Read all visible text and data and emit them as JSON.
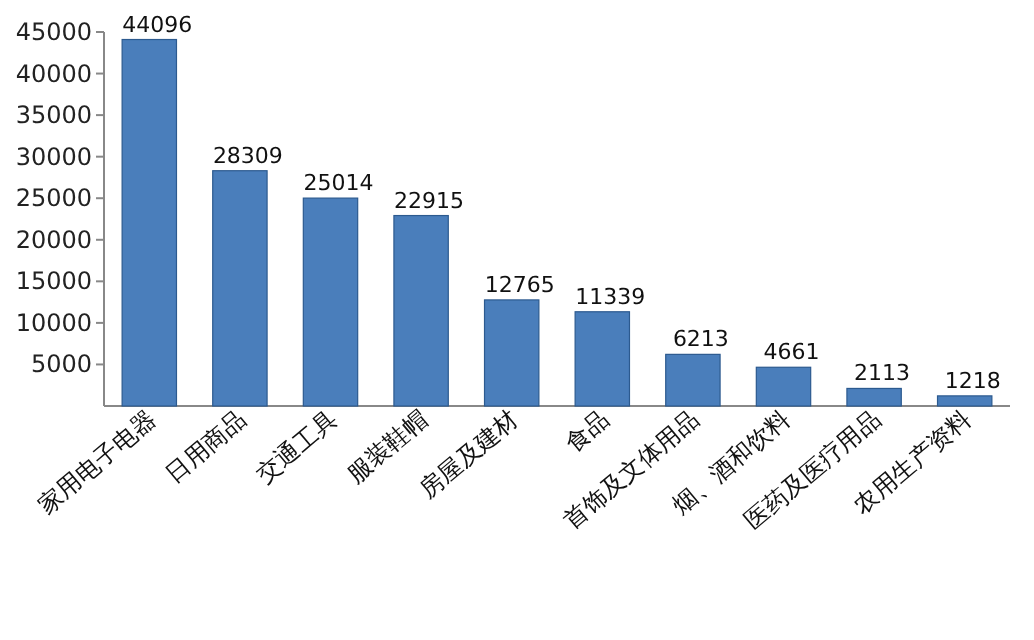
{
  "chart_data": {
    "type": "bar",
    "categories": [
      "家用电子电器",
      "日用商品",
      "交通工具",
      "服装鞋帽",
      "房屋及建材",
      "食品",
      "首饰及文体用品",
      "烟、酒和饮料",
      "医药及医疗用品",
      "农用生产资料"
    ],
    "values": [
      44096,
      28309,
      25014,
      22915,
      12765,
      11339,
      6213,
      4661,
      2113,
      1218
    ],
    "color": "#4a7ebb",
    "ylim": [
      0,
      45000
    ],
    "yticks": [
      5000,
      10000,
      15000,
      20000,
      25000,
      30000,
      35000,
      40000,
      45000
    ],
    "data_labels": true
  }
}
